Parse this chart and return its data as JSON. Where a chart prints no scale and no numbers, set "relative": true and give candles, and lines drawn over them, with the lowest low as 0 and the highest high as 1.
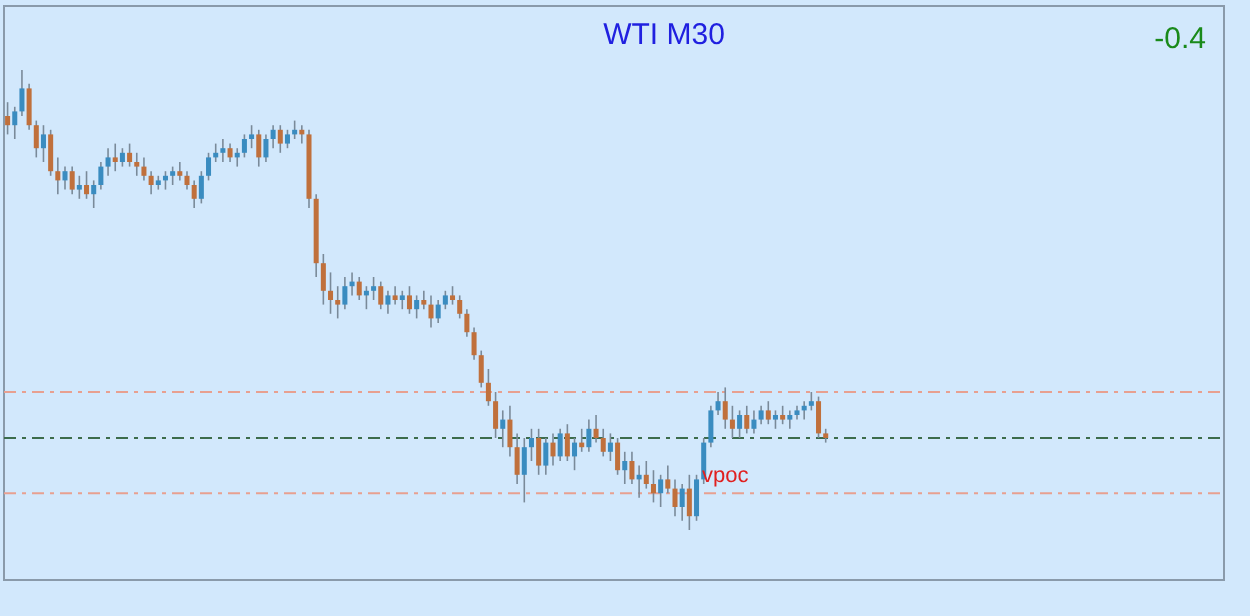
{
  "chart_data": {
    "type": "candlestick",
    "title": "WTI M30",
    "relative": true,
    "annotations": [
      "-0.4",
      "vpoc"
    ],
    "ref_lines": [
      {
        "axis": "y",
        "value": 0.3,
        "color": "#e8a090",
        "line_style": "dashed"
      },
      {
        "axis": "y",
        "value": 0.2,
        "color": "#3c6c4c",
        "line_style": "dashed"
      },
      {
        "axis": "y",
        "value": 0.08,
        "color": "#e8a090",
        "line_style": "dashed"
      }
    ],
    "categories": [
      null,
      null,
      null,
      null,
      null,
      null,
      null,
      null,
      null,
      null,
      null,
      null,
      null,
      null,
      null,
      null,
      null,
      null,
      null,
      null,
      null,
      null,
      null,
      null,
      null,
      null,
      null,
      null,
      null,
      null,
      null,
      null,
      null,
      null,
      null,
      null,
      null,
      null,
      null,
      null,
      null,
      null,
      null,
      null,
      null,
      null,
      null,
      null,
      null,
      null,
      null,
      null,
      null,
      null,
      null,
      null,
      null,
      null,
      null,
      null,
      null,
      null,
      null,
      null,
      null,
      null,
      null,
      null,
      null,
      null,
      null,
      null,
      null,
      null,
      null,
      null,
      null,
      null,
      null,
      null,
      null,
      null,
      null,
      null,
      null,
      null,
      null,
      null,
      null,
      null,
      null,
      null,
      null,
      null,
      null,
      null,
      null,
      null,
      null,
      null,
      null,
      null,
      null,
      null,
      null,
      null,
      null,
      null,
      null,
      null,
      null,
      null,
      null,
      null,
      null,
      null,
      null,
      null,
      null,
      null,
      null,
      null,
      null,
      null,
      null,
      null,
      null,
      null,
      null,
      null,
      null,
      null,
      null,
      null,
      null,
      null,
      null,
      null,
      null,
      null,
      null,
      null,
      null,
      null,
      null,
      null,
      null,
      null,
      null,
      null,
      null,
      null,
      null,
      null,
      null,
      null,
      null,
      null,
      null,
      null,
      null,
      null,
      null,
      null,
      null,
      null,
      null,
      null,
      null,
      null
    ],
    "ohlc": [
      [
        0.9,
        0.93,
        0.86,
        0.88
      ],
      [
        0.88,
        0.92,
        0.85,
        0.91
      ],
      [
        0.91,
        1.0,
        0.9,
        0.96
      ],
      [
        0.96,
        0.97,
        0.87,
        0.88
      ],
      [
        0.88,
        0.89,
        0.81,
        0.83
      ],
      [
        0.83,
        0.88,
        0.8,
        0.86
      ],
      [
        0.86,
        0.87,
        0.77,
        0.78
      ],
      [
        0.78,
        0.81,
        0.73,
        0.76
      ],
      [
        0.76,
        0.79,
        0.74,
        0.78
      ],
      [
        0.78,
        0.79,
        0.73,
        0.74
      ],
      [
        0.74,
        0.77,
        0.72,
        0.75
      ],
      [
        0.75,
        0.78,
        0.72,
        0.73
      ],
      [
        0.73,
        0.76,
        0.7,
        0.75
      ],
      [
        0.75,
        0.8,
        0.74,
        0.79
      ],
      [
        0.79,
        0.83,
        0.77,
        0.81
      ],
      [
        0.81,
        0.84,
        0.78,
        0.8
      ],
      [
        0.8,
        0.83,
        0.79,
        0.82
      ],
      [
        0.82,
        0.84,
        0.79,
        0.8
      ],
      [
        0.8,
        0.82,
        0.77,
        0.79
      ],
      [
        0.79,
        0.81,
        0.76,
        0.77
      ],
      [
        0.77,
        0.78,
        0.73,
        0.75
      ],
      [
        0.75,
        0.77,
        0.74,
        0.76
      ],
      [
        0.76,
        0.78,
        0.74,
        0.77
      ],
      [
        0.77,
        0.79,
        0.75,
        0.78
      ],
      [
        0.78,
        0.8,
        0.76,
        0.77
      ],
      [
        0.77,
        0.78,
        0.74,
        0.75
      ],
      [
        0.75,
        0.76,
        0.7,
        0.72
      ],
      [
        0.72,
        0.78,
        0.71,
        0.77
      ],
      [
        0.77,
        0.82,
        0.76,
        0.81
      ],
      [
        0.81,
        0.84,
        0.8,
        0.82
      ],
      [
        0.82,
        0.85,
        0.8,
        0.83
      ],
      [
        0.83,
        0.84,
        0.8,
        0.81
      ],
      [
        0.81,
        0.83,
        0.79,
        0.82
      ],
      [
        0.82,
        0.86,
        0.81,
        0.85
      ],
      [
        0.85,
        0.88,
        0.83,
        0.86
      ],
      [
        0.86,
        0.87,
        0.79,
        0.81
      ],
      [
        0.81,
        0.86,
        0.8,
        0.85
      ],
      [
        0.85,
        0.88,
        0.83,
        0.87
      ],
      [
        0.87,
        0.88,
        0.82,
        0.84
      ],
      [
        0.84,
        0.87,
        0.83,
        0.86
      ],
      [
        0.86,
        0.89,
        0.85,
        0.87
      ],
      [
        0.87,
        0.88,
        0.84,
        0.86
      ],
      [
        0.86,
        0.87,
        0.7,
        0.72
      ],
      [
        0.72,
        0.73,
        0.55,
        0.58
      ],
      [
        0.58,
        0.6,
        0.49,
        0.52
      ],
      [
        0.52,
        0.56,
        0.47,
        0.5
      ],
      [
        0.5,
        0.53,
        0.46,
        0.49
      ],
      [
        0.49,
        0.55,
        0.48,
        0.53
      ],
      [
        0.53,
        0.56,
        0.51,
        0.54
      ],
      [
        0.54,
        0.55,
        0.5,
        0.51
      ],
      [
        0.51,
        0.53,
        0.48,
        0.52
      ],
      [
        0.52,
        0.55,
        0.5,
        0.53
      ],
      [
        0.53,
        0.54,
        0.48,
        0.49
      ],
      [
        0.49,
        0.52,
        0.47,
        0.51
      ],
      [
        0.51,
        0.53,
        0.49,
        0.5
      ],
      [
        0.5,
        0.52,
        0.48,
        0.51
      ],
      [
        0.51,
        0.53,
        0.47,
        0.48
      ],
      [
        0.48,
        0.51,
        0.46,
        0.5
      ],
      [
        0.5,
        0.52,
        0.48,
        0.49
      ],
      [
        0.49,
        0.51,
        0.44,
        0.46
      ],
      [
        0.46,
        0.5,
        0.45,
        0.49
      ],
      [
        0.49,
        0.52,
        0.48,
        0.51
      ],
      [
        0.51,
        0.53,
        0.49,
        0.5
      ],
      [
        0.5,
        0.51,
        0.46,
        0.47
      ],
      [
        0.47,
        0.48,
        0.42,
        0.43
      ],
      [
        0.43,
        0.44,
        0.37,
        0.38
      ],
      [
        0.38,
        0.39,
        0.31,
        0.32
      ],
      [
        0.32,
        0.35,
        0.27,
        0.28
      ],
      [
        0.28,
        0.3,
        0.2,
        0.22
      ],
      [
        0.22,
        0.26,
        0.18,
        0.24
      ],
      [
        0.24,
        0.27,
        0.16,
        0.18
      ],
      [
        0.18,
        0.21,
        0.1,
        0.12
      ],
      [
        0.12,
        0.2,
        0.06,
        0.18
      ],
      [
        0.18,
        0.22,
        0.15,
        0.2
      ],
      [
        0.2,
        0.22,
        0.12,
        0.14
      ],
      [
        0.14,
        0.2,
        0.12,
        0.19
      ],
      [
        0.19,
        0.21,
        0.14,
        0.16
      ],
      [
        0.16,
        0.22,
        0.15,
        0.21
      ],
      [
        0.21,
        0.23,
        0.15,
        0.16
      ],
      [
        0.16,
        0.2,
        0.13,
        0.19
      ],
      [
        0.19,
        0.22,
        0.17,
        0.18
      ],
      [
        0.18,
        0.24,
        0.17,
        0.22
      ],
      [
        0.22,
        0.25,
        0.19,
        0.2
      ],
      [
        0.2,
        0.22,
        0.16,
        0.17
      ],
      [
        0.17,
        0.21,
        0.15,
        0.19
      ],
      [
        0.19,
        0.2,
        0.12,
        0.13
      ],
      [
        0.13,
        0.17,
        0.1,
        0.15
      ],
      [
        0.15,
        0.17,
        0.1,
        0.11
      ],
      [
        0.11,
        0.14,
        0.07,
        0.12
      ],
      [
        0.12,
        0.15,
        0.09,
        0.1
      ],
      [
        0.1,
        0.13,
        0.06,
        0.08
      ],
      [
        0.08,
        0.12,
        0.05,
        0.11
      ],
      [
        0.11,
        0.14,
        0.08,
        0.09
      ],
      [
        0.09,
        0.11,
        0.03,
        0.05
      ],
      [
        0.05,
        0.1,
        0.02,
        0.09
      ],
      [
        0.09,
        0.12,
        0.0,
        0.03
      ],
      [
        0.03,
        0.12,
        0.02,
        0.11
      ],
      [
        0.11,
        0.2,
        0.1,
        0.19
      ],
      [
        0.19,
        0.27,
        0.18,
        0.26
      ],
      [
        0.26,
        0.3,
        0.25,
        0.28
      ],
      [
        0.28,
        0.31,
        0.22,
        0.24
      ],
      [
        0.24,
        0.27,
        0.2,
        0.22
      ],
      [
        0.22,
        0.26,
        0.2,
        0.25
      ],
      [
        0.25,
        0.27,
        0.21,
        0.22
      ],
      [
        0.22,
        0.26,
        0.21,
        0.24
      ],
      [
        0.24,
        0.27,
        0.23,
        0.26
      ],
      [
        0.26,
        0.28,
        0.23,
        0.24
      ],
      [
        0.24,
        0.26,
        0.22,
        0.25
      ],
      [
        0.25,
        0.27,
        0.23,
        0.24
      ],
      [
        0.24,
        0.26,
        0.22,
        0.25
      ],
      [
        0.25,
        0.27,
        0.24,
        0.26
      ],
      [
        0.26,
        0.28,
        0.24,
        0.27
      ],
      [
        0.27,
        0.3,
        0.26,
        0.28
      ],
      [
        0.28,
        0.29,
        0.2,
        0.21
      ],
      [
        0.21,
        0.22,
        0.19,
        0.2
      ],
      null,
      null,
      null,
      null,
      null,
      null,
      null,
      null,
      null,
      null,
      null,
      null,
      null,
      null,
      null,
      null,
      null,
      null,
      null,
      null,
      null,
      null,
      null,
      null,
      null,
      null,
      null,
      null,
      null,
      null,
      null,
      null,
      null,
      null,
      null,
      null,
      null,
      null,
      null,
      null,
      null,
      null,
      null,
      null,
      null,
      null,
      null,
      null,
      null,
      null,
      null,
      null,
      null,
      null,
      null
    ]
  }
}
